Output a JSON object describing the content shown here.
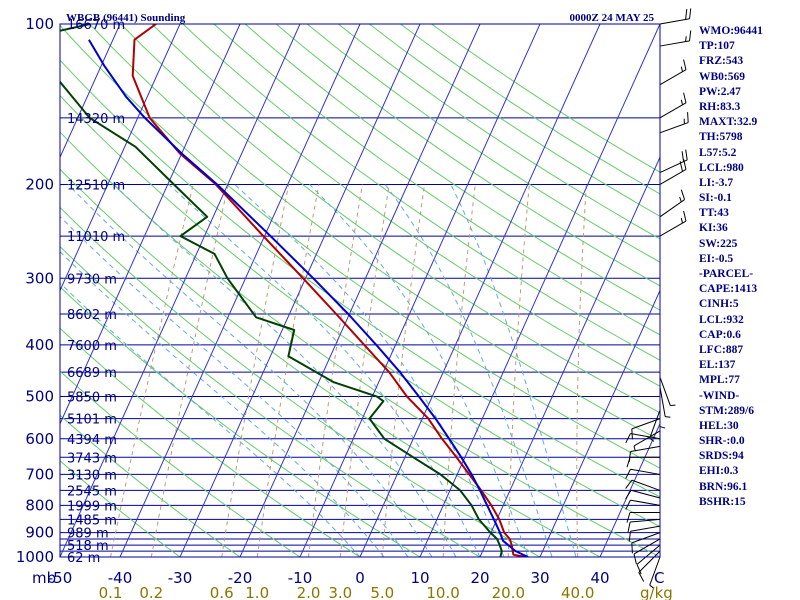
{
  "header": {
    "station": "WBGB (96441) Sounding",
    "time": "0000Z 24 MAY 25"
  },
  "colors": {
    "isobar": "#0000A0",
    "isotherm": "#3333CC",
    "dry_adiabat": "#66CC66",
    "moist_adiabat": "#66AADD",
    "mixing_ratio": "#B8A070",
    "temperature": "#B00000",
    "dewpoint": "#004000",
    "parcel": "#0000CC",
    "label": "#000080",
    "mixing_label": "#8B7500"
  },
  "axes": {
    "pressure_unit": "mb",
    "mixing_unit": "g/kg",
    "temperature_unit": "C"
  },
  "indices": [
    "WMO:96441",
    "TP:107",
    "FRZ:543",
    "WB0:569",
    "PW:2.47",
    "RH:83.3",
    "MAXT:32.9",
    "TH:5798",
    "L57:5.2",
    "LCL:980",
    "LI:-3.7",
    "SI:-0.1",
    "TT:43",
    "KI:36",
    "SW:225",
    "EI:-0.5",
    "-PARCEL-",
    "CAPE:1413",
    "CINH:5",
    "LCL:932",
    "CAP:0.6",
    "LFC:887",
    "EL:137",
    "MPL:77",
    "-WIND-",
    "STM:289/6",
    "HEL:30",
    "SHR-:0.0",
    "SRDS:94",
    "EHI:0.3",
    "BRN:96.1",
    "BSHR:15"
  ],
  "chart_data": {
    "type": "line",
    "diagram": "skew-T log-P",
    "y_axis": {
      "unit": "mb",
      "range": [
        1000,
        100
      ],
      "scale": "log",
      "direction": "inverted"
    },
    "x_axis": {
      "unit": "C",
      "range": [
        -50,
        50
      ]
    },
    "pressure_labels": [
      {
        "p": 100,
        "label": "100"
      },
      {
        "p": 200,
        "label": "200"
      },
      {
        "p": 300,
        "label": "300"
      },
      {
        "p": 400,
        "label": "400"
      },
      {
        "p": 500,
        "label": "500"
      },
      {
        "p": 600,
        "label": "600"
      },
      {
        "p": 700,
        "label": "700"
      },
      {
        "p": 800,
        "label": "800"
      },
      {
        "p": 900,
        "label": "900"
      },
      {
        "p": 1000,
        "label": "1000"
      }
    ],
    "isobars": [
      100,
      150,
      200,
      250,
      300,
      350,
      400,
      450,
      500,
      550,
      600,
      650,
      700,
      750,
      800,
      850,
      900,
      925,
      950,
      975,
      1000
    ],
    "height_labels": [
      {
        "p": 100,
        "label": "16670 m"
      },
      {
        "p": 150,
        "label": "14320 m"
      },
      {
        "p": 200,
        "label": "12510 m"
      },
      {
        "p": 250,
        "label": "11010 m"
      },
      {
        "p": 300,
        "label": "9730 m"
      },
      {
        "p": 350,
        "label": "8602 m"
      },
      {
        "p": 400,
        "label": "7600 m"
      },
      {
        "p": 450,
        "label": "6689 m"
      },
      {
        "p": 500,
        "label": "5850 m"
      },
      {
        "p": 550,
        "label": "5101 m"
      },
      {
        "p": 600,
        "label": "4394 m"
      },
      {
        "p": 650,
        "label": "3743 m"
      },
      {
        "p": 700,
        "label": "3130 m"
      },
      {
        "p": 750,
        "label": "2545 m"
      },
      {
        "p": 800,
        "label": "1999 m"
      },
      {
        "p": 850,
        "label": "1485 m"
      },
      {
        "p": 900,
        "label": "989 m"
      },
      {
        "p": 950,
        "label": "518 m"
      },
      {
        "p": 1000,
        "label": "62 m"
      }
    ],
    "temp_ticks": [
      {
        "t": -50,
        "label": "-50"
      },
      {
        "t": -40,
        "label": "-40"
      },
      {
        "t": -30,
        "label": "-30"
      },
      {
        "t": -20,
        "label": "-20"
      },
      {
        "t": -10,
        "label": "-10"
      },
      {
        "t": 0,
        "label": "0"
      },
      {
        "t": 10,
        "label": "10"
      },
      {
        "t": 20,
        "label": "20"
      },
      {
        "t": 30,
        "label": "30"
      },
      {
        "t": 40,
        "label": "40"
      }
    ],
    "isotherms": [
      -120,
      -110,
      -100,
      -90,
      -80,
      -70,
      -60,
      -50,
      -40,
      -30,
      -20,
      -10,
      0,
      10,
      20,
      30,
      40,
      50
    ],
    "dry_adiabats_theta_C": [
      -30,
      -20,
      -10,
      0,
      10,
      20,
      30,
      40,
      50,
      60,
      70,
      80,
      90,
      100,
      110,
      120,
      130,
      140,
      150,
      160,
      170,
      180,
      190,
      200
    ],
    "moist_adiabats_start_C": [
      0,
      4,
      8,
      12,
      16,
      20,
      24,
      28,
      32,
      36
    ],
    "mixing_ratio_lines": [
      {
        "w": 0.1,
        "label": "0.1"
      },
      {
        "w": 0.2,
        "label": "0.2"
      },
      {
        "w": 0.6,
        "label": "0.6"
      },
      {
        "w": 1.0,
        "label": "1.0"
      },
      {
        "w": 2.0,
        "label": "2.0"
      },
      {
        "w": 3.0,
        "label": "3.0"
      },
      {
        "w": 5.0,
        "label": "5.0"
      },
      {
        "w": 10.0,
        "label": "10.0"
      },
      {
        "w": 20.0,
        "label": "20.0"
      },
      {
        "w": 40.0,
        "label": "40.0"
      }
    ],
    "series": [
      {
        "name": "temperature",
        "points": [
          [
            1000,
            27.6
          ],
          [
            990,
            25.4
          ],
          [
            950,
            24.4
          ],
          [
            925,
            23.6
          ],
          [
            900,
            22.2
          ],
          [
            850,
            20.4
          ],
          [
            800,
            18.0
          ],
          [
            750,
            15.2
          ],
          [
            700,
            12.0
          ],
          [
            650,
            8.6
          ],
          [
            600,
            4.8
          ],
          [
            550,
            1.0
          ],
          [
            500,
            -4.2
          ],
          [
            450,
            -9.0
          ],
          [
            400,
            -15.2
          ],
          [
            350,
            -22.2
          ],
          [
            300,
            -30.4
          ],
          [
            250,
            -40.2
          ],
          [
            200,
            -52.0
          ],
          [
            175,
            -60.3
          ],
          [
            150,
            -68.0
          ],
          [
            125,
            -74.0
          ],
          [
            107,
            -76.4
          ],
          [
            100,
            -74.0
          ]
        ]
      },
      {
        "name": "dewpoint",
        "points": [
          [
            1000,
            23.4
          ],
          [
            975,
            23.2
          ],
          [
            950,
            22.4
          ],
          [
            925,
            21.5
          ],
          [
            900,
            19.9
          ],
          [
            850,
            17.0
          ],
          [
            800,
            14.7
          ],
          [
            750,
            11.7
          ],
          [
            700,
            7.2
          ],
          [
            650,
            1.4
          ],
          [
            600,
            -4.8
          ],
          [
            550,
            -8.8
          ],
          [
            510,
            -7.8
          ],
          [
            500,
            -9.2
          ],
          [
            470,
            -17.5
          ],
          [
            420,
            -27.0
          ],
          [
            375,
            -28.0
          ],
          [
            355,
            -35.3
          ],
          [
            300,
            -43.0
          ],
          [
            270,
            -47.0
          ],
          [
            250,
            -54.0
          ],
          [
            230,
            -51.0
          ],
          [
            200,
            -59.0
          ],
          [
            170,
            -68.2
          ],
          [
            150,
            -78.0
          ],
          [
            120,
            -89.0
          ],
          [
            107,
            -95.5
          ],
          [
            100,
            -85.0
          ]
        ]
      },
      {
        "name": "parcel",
        "points": [
          [
            1000,
            28.0
          ],
          [
            975,
            25.5
          ],
          [
            932,
            22.6
          ],
          [
            900,
            21.5
          ],
          [
            850,
            19.5
          ],
          [
            800,
            17.3
          ],
          [
            750,
            15.0
          ],
          [
            700,
            12.4
          ],
          [
            650,
            9.4
          ],
          [
            600,
            6.0
          ],
          [
            550,
            2.2
          ],
          [
            500,
            -2.2
          ],
          [
            450,
            -7.2
          ],
          [
            400,
            -13.2
          ],
          [
            350,
            -20.2
          ],
          [
            300,
            -28.7
          ],
          [
            250,
            -39.0
          ],
          [
            200,
            -51.8
          ],
          [
            175,
            -60.0
          ],
          [
            150,
            -68.8
          ],
          [
            137,
            -73.5
          ],
          [
            120,
            -79.4
          ],
          [
            107,
            -84.0
          ]
        ]
      }
    ],
    "wind_barbs": [
      {
        "p": 1000,
        "dir": 200,
        "spd": 5
      },
      {
        "p": 975,
        "dir": 225,
        "spd": 10
      },
      {
        "p": 950,
        "dir": 230,
        "spd": 10
      },
      {
        "p": 925,
        "dir": 240,
        "spd": 10
      },
      {
        "p": 900,
        "dir": 250,
        "spd": 10
      },
      {
        "p": 875,
        "dir": 260,
        "spd": 10
      },
      {
        "p": 850,
        "dir": 265,
        "spd": 10
      },
      {
        "p": 825,
        "dir": 270,
        "spd": 10
      },
      {
        "p": 800,
        "dir": 280,
        "spd": 10
      },
      {
        "p": 775,
        "dir": 285,
        "spd": 10
      },
      {
        "p": 750,
        "dir": 290,
        "spd": 10
      },
      {
        "p": 700,
        "dir": 280,
        "spd": 10
      },
      {
        "p": 650,
        "dir": 270,
        "spd": 10
      },
      {
        "p": 620,
        "dir": 260,
        "spd": 10
      },
      {
        "p": 600,
        "dir": 280,
        "spd": 10
      },
      {
        "p": 580,
        "dir": 240,
        "spd": 5
      },
      {
        "p": 550,
        "dir": 250,
        "spd": 10
      },
      {
        "p": 530,
        "dir": 200,
        "spd": 5
      },
      {
        "p": 500,
        "dir": 180,
        "spd": 5
      },
      {
        "p": 480,
        "dir": 170,
        "spd": 5
      },
      {
        "p": 460,
        "dir": 160,
        "spd": 5
      },
      {
        "p": 250,
        "dir": 60,
        "spd": 15
      },
      {
        "p": 230,
        "dir": 55,
        "spd": 15
      },
      {
        "p": 200,
        "dir": 60,
        "spd": 20
      },
      {
        "p": 190,
        "dir": 65,
        "spd": 20
      },
      {
        "p": 160,
        "dir": 70,
        "spd": 15
      },
      {
        "p": 150,
        "dir": 60,
        "spd": 15
      },
      {
        "p": 130,
        "dir": 60,
        "spd": 15
      },
      {
        "p": 110,
        "dir": 80,
        "spd": 15
      },
      {
        "p": 100,
        "dir": 80,
        "spd": 20
      }
    ]
  }
}
